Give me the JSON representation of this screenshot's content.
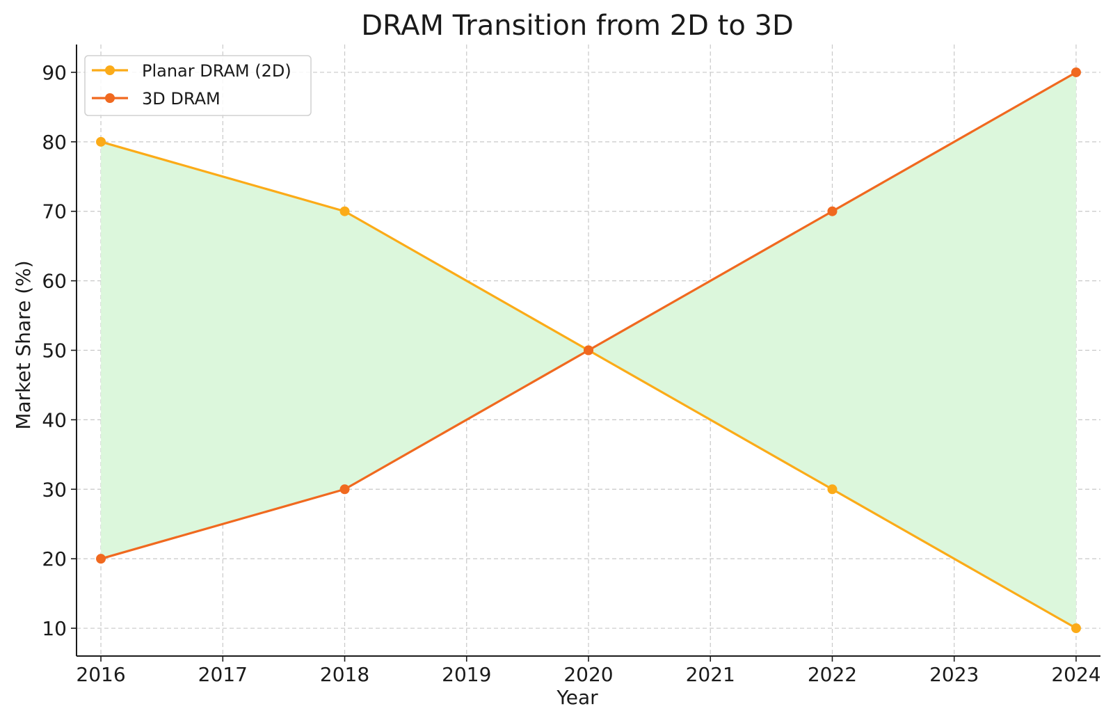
{
  "chart_data": {
    "type": "line",
    "title": "DRAM Transition from 2D to 3D",
    "xlabel": "Year",
    "ylabel": "Market Share (%)",
    "x": [
      2016,
      2018,
      2020,
      2022,
      2024
    ],
    "x_ticks": [
      "2016",
      "2017",
      "2018",
      "2019",
      "2020",
      "2021",
      "2022",
      "2023",
      "2024"
    ],
    "y_ticks": [
      "10",
      "20",
      "30",
      "40",
      "50",
      "60",
      "70",
      "80",
      "90"
    ],
    "xlim": [
      2015.8,
      2024.2
    ],
    "ylim": [
      6,
      94
    ],
    "grid": true,
    "legend_position": "top-left",
    "fill_between": {
      "color": "#dcf7dc"
    },
    "series": [
      {
        "name": "Planar DRAM (2D)",
        "color": "#fbab18",
        "marker": "circle",
        "values": [
          80,
          70,
          50,
          30,
          10
        ]
      },
      {
        "name": "3D DRAM",
        "color": "#f0691f",
        "marker": "circle",
        "values": [
          20,
          30,
          50,
          70,
          90
        ]
      }
    ]
  }
}
